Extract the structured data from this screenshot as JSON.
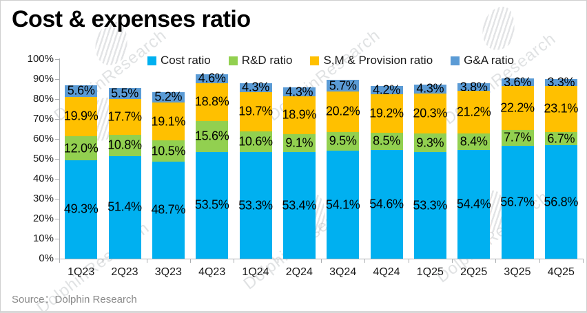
{
  "title": "Cost & expenses ratio",
  "source": "Source：Dolphin Research",
  "watermark": {
    "text": "DolphinResearch"
  },
  "chart_data": {
    "type": "bar",
    "subtype": "stacked-percent",
    "title": "Cost & expenses ratio",
    "xlabel": "",
    "ylabel": "",
    "ylim": [
      0,
      100
    ],
    "ytick_labels": [
      "0%",
      "10%",
      "20%",
      "30%",
      "40%",
      "50%",
      "60%",
      "70%",
      "80%",
      "90%",
      "100%"
    ],
    "grid": false,
    "legend_position": "top",
    "categories": [
      "1Q23",
      "2Q23",
      "3Q23",
      "4Q23",
      "1Q24",
      "2Q24",
      "3Q24",
      "4Q24",
      "1Q25",
      "2Q25",
      "3Q25",
      "4Q25"
    ],
    "series": [
      {
        "name": "Cost ratio",
        "color": "#00B0F0",
        "values": [
          49.3,
          51.4,
          48.7,
          53.5,
          53.3,
          53.4,
          54.1,
          54.6,
          53.3,
          54.4,
          56.7,
          56.8
        ]
      },
      {
        "name": "R&D ratio",
        "color": "#92D050",
        "values": [
          12.0,
          10.8,
          10.5,
          15.6,
          10.6,
          9.1,
          9.5,
          8.5,
          9.3,
          8.4,
          7.7,
          6.7
        ]
      },
      {
        "name": "S,M & Provision ratio",
        "color": "#FFC000",
        "values": [
          19.9,
          17.7,
          19.1,
          18.8,
          19.7,
          18.9,
          20.2,
          19.2,
          20.3,
          21.2,
          22.2,
          23.1
        ]
      },
      {
        "name": "G&A ratio",
        "color": "#5B9BD5",
        "values": [
          5.6,
          5.5,
          5.2,
          4.6,
          4.3,
          4.3,
          5.7,
          4.2,
          4.3,
          3.8,
          3.6,
          3.3
        ]
      }
    ]
  },
  "colors": {
    "axis": "#aaadb0",
    "title_text": "#000000",
    "tick_text": "#1a1a1a",
    "source_text": "#8a8a8a",
    "watermark": "#9aa0a6"
  }
}
